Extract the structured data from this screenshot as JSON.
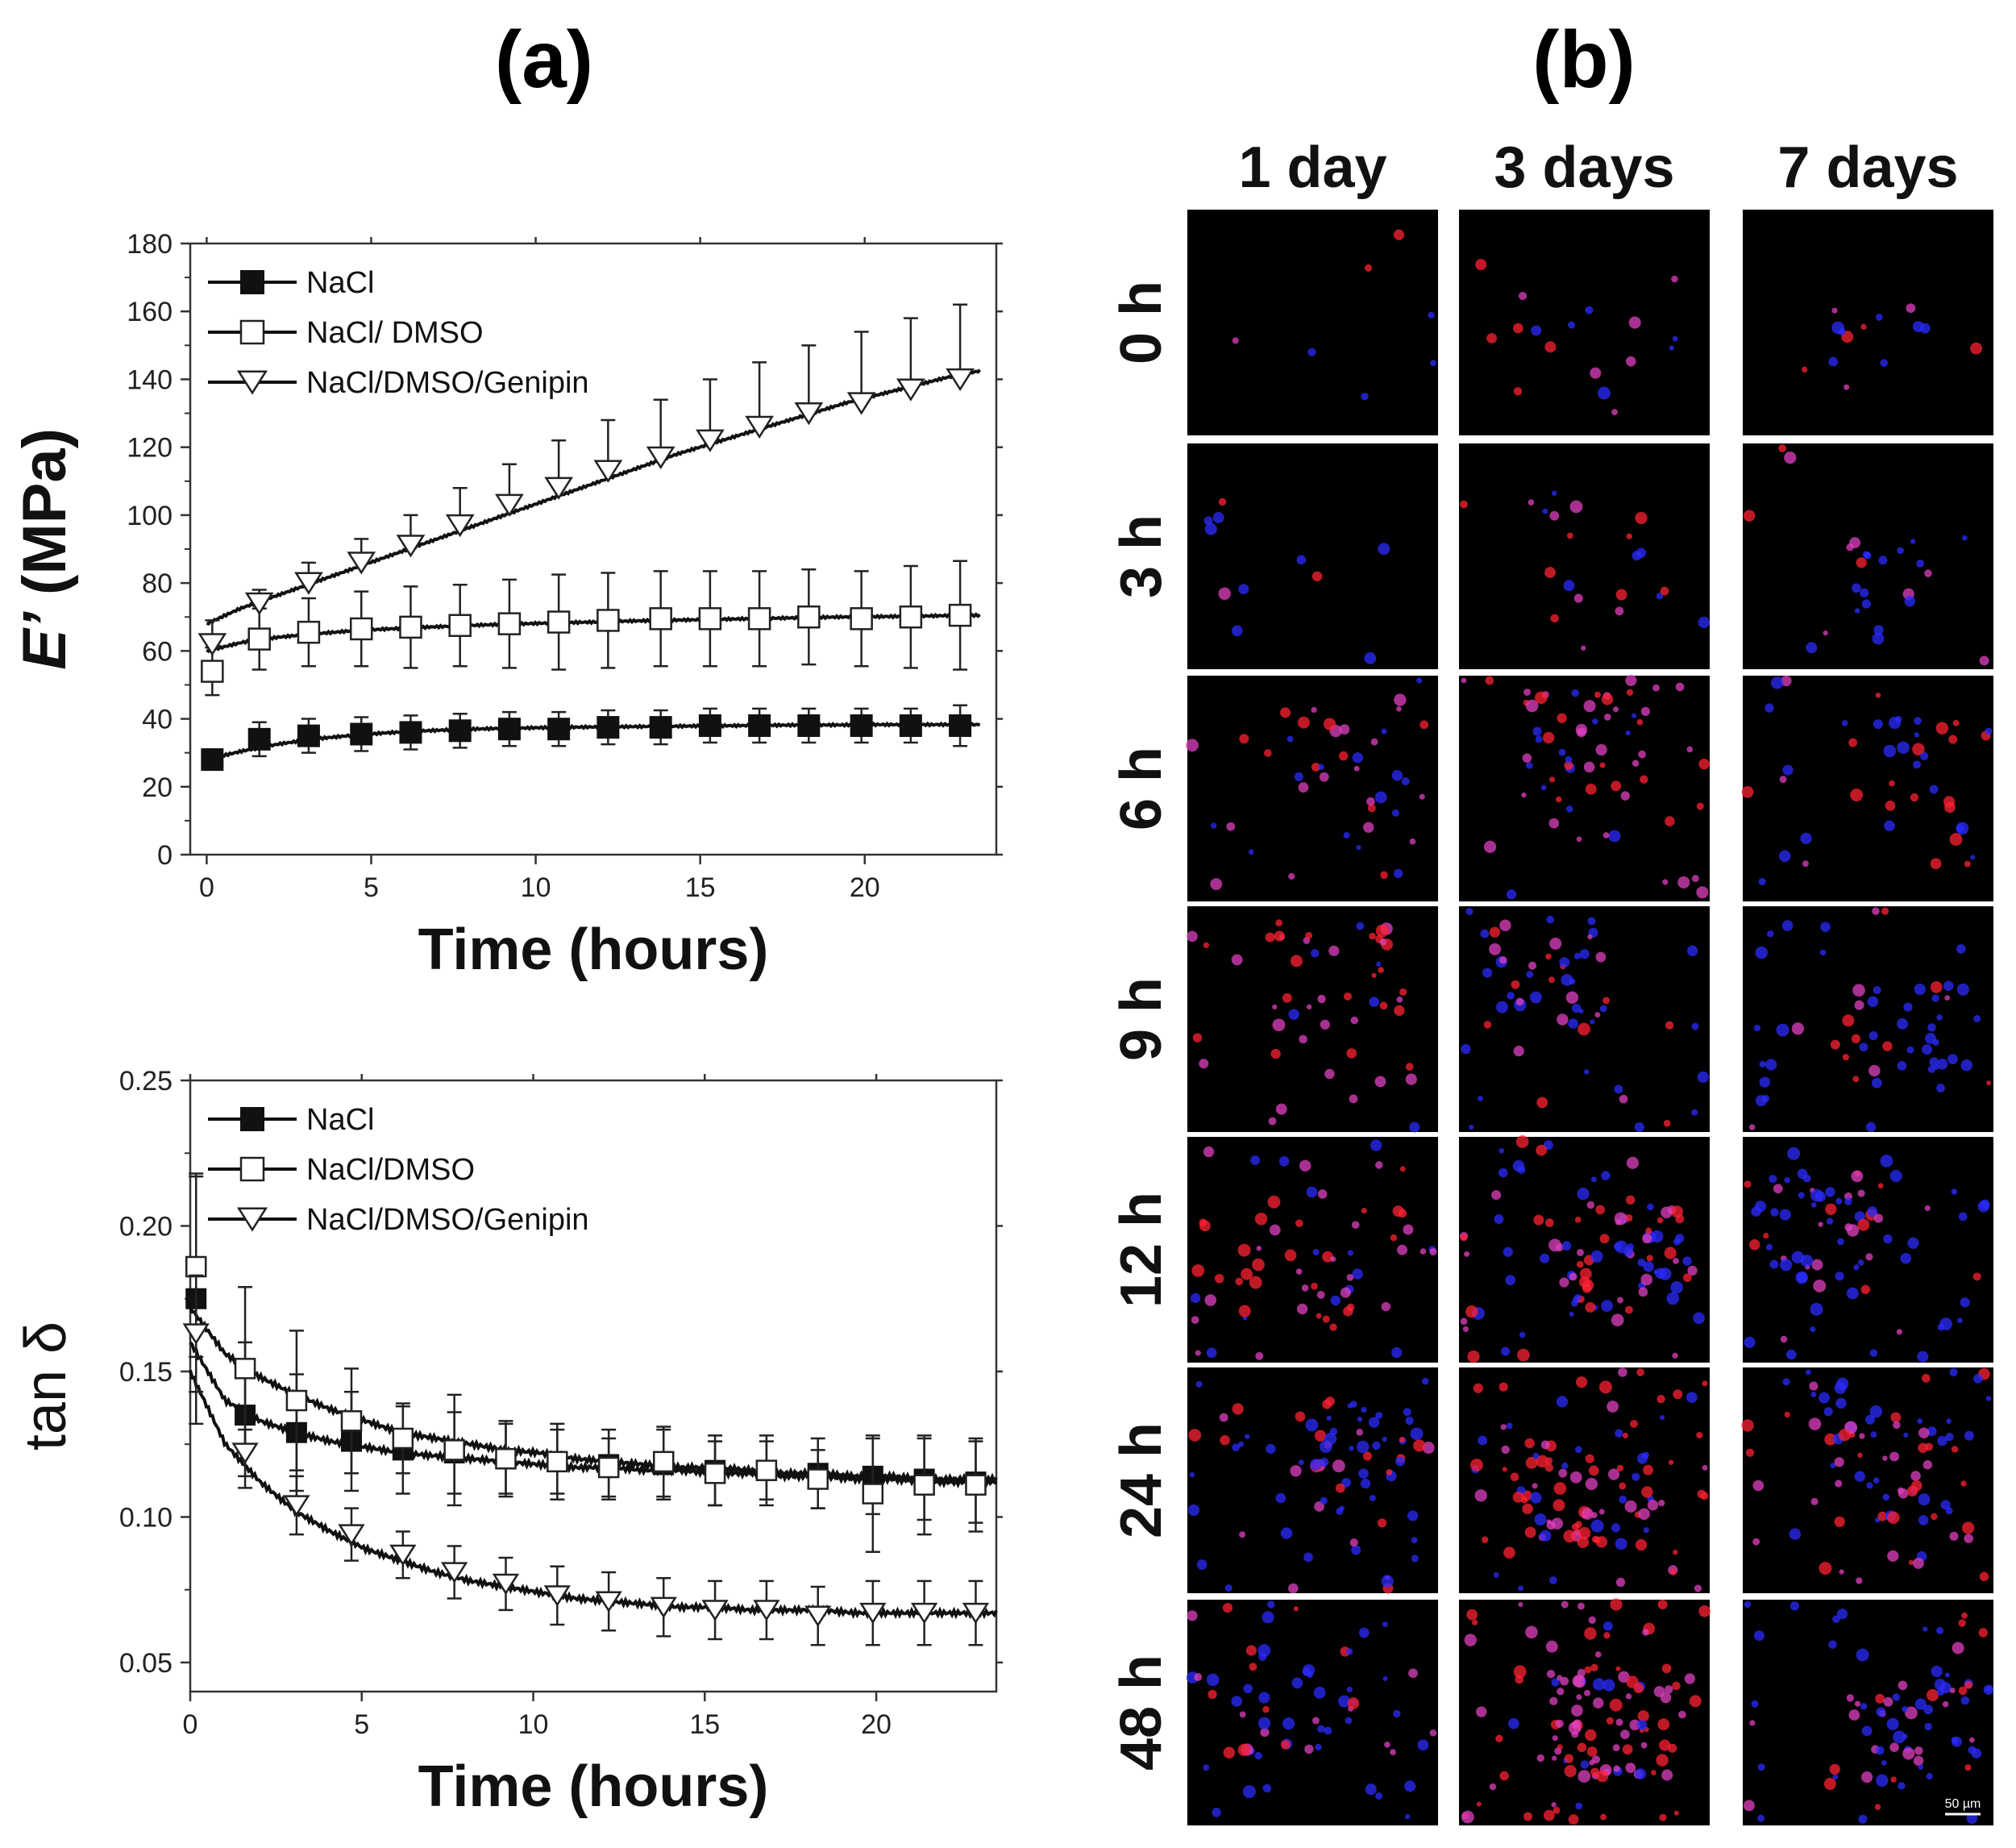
{
  "panel_labels": {
    "a": "(a)",
    "b": "(b)"
  },
  "chart_data": [
    {
      "type": "line",
      "panel": "(a) top",
      "title": "",
      "xlabel": "Time (hours)",
      "ylabel_prefix": "E’",
      "ylabel_suffix": " (MPa)",
      "xlim": [
        -0.5,
        24
      ],
      "ylim": [
        0,
        180
      ],
      "xticks": [
        0,
        5,
        10,
        15,
        20
      ],
      "yticks": [
        0,
        20,
        40,
        60,
        80,
        100,
        120,
        140,
        160,
        180
      ],
      "legend_position": "top-left",
      "grid": false,
      "x": [
        0.17,
        1.6,
        3.1,
        4.7,
        6.2,
        7.7,
        9.2,
        10.7,
        12.2,
        13.8,
        15.3,
        16.8,
        18.3,
        19.9,
        21.4,
        22.9
      ],
      "series": [
        {
          "name": "NaCl",
          "marker": "filled-square",
          "values": [
            28,
            34,
            35,
            35.5,
            36,
            36.5,
            37,
            37,
            37.5,
            37.5,
            38,
            38,
            38,
            38,
            38,
            38
          ],
          "errors": [
            3,
            5,
            5,
            5,
            5,
            5,
            5,
            5,
            5,
            5,
            5,
            5,
            5,
            5,
            5,
            6
          ],
          "fit": [
            28,
            30.5,
            32.5,
            34,
            35,
            35.8,
            36.4,
            36.8,
            37.1,
            37.3,
            37.5,
            37.6,
            37.7,
            37.8,
            37.9,
            38,
            38.1,
            38.2,
            38.2,
            38.3,
            38.3,
            38.3,
            38.3
          ]
        },
        {
          "name": "NaCl/ DMSO",
          "marker": "open-square",
          "values": [
            54,
            63.5,
            65.5,
            66.5,
            67,
            67.5,
            68,
            68.5,
            69,
            69.5,
            69.5,
            69.5,
            70,
            69.5,
            70,
            70.5
          ],
          "errors": [
            7,
            9,
            10,
            11,
            12,
            12,
            13,
            14,
            14,
            14,
            14,
            14,
            14,
            14,
            15,
            16
          ],
          "fit": [
            60,
            62.5,
            64,
            65,
            65.8,
            66.4,
            66.9,
            67.3,
            67.7,
            68,
            68.3,
            68.5,
            68.8,
            69,
            69.2,
            69.4,
            69.6,
            69.8,
            70,
            70.1,
            70.2,
            70.4,
            70.5
          ]
        },
        {
          "name": "NaCl/DMSO/Genipin",
          "marker": "open-triangle-down",
          "values": [
            62,
            74,
            80,
            86,
            91,
            97,
            103,
            108,
            113,
            117,
            122,
            126,
            130,
            133,
            137,
            140
          ],
          "errors": [
            7,
            4,
            6,
            7,
            9,
            11,
            12,
            14,
            15,
            17,
            18,
            19,
            20,
            21,
            21,
            22
          ],
          "fit": [
            68,
            72.5,
            76,
            79.5,
            83,
            86.5,
            90,
            93.5,
            97,
            100.5,
            104,
            107.5,
            111,
            114.5,
            118,
            121,
            124,
            127,
            130,
            133,
            135.5,
            138,
            140.5,
            142.5
          ]
        }
      ]
    },
    {
      "type": "line",
      "panel": "(a) bottom",
      "title": "",
      "xlabel": "Time (hours)",
      "ylabel": "tan δ",
      "xlim": [
        0,
        23.5
      ],
      "ylim": [
        0.04,
        0.25
      ],
      "xticks": [
        0,
        5,
        10,
        15,
        20
      ],
      "yticks": [
        0.05,
        0.1,
        0.15,
        0.2,
        0.25
      ],
      "ytick_labels": [
        "0.05",
        "0.10",
        "0.15",
        "0.20",
        "0.25"
      ],
      "legend_position": "top-left",
      "grid": false,
      "x": [
        0.17,
        1.6,
        3.1,
        4.7,
        6.2,
        7.7,
        9.2,
        10.7,
        12.2,
        13.8,
        15.3,
        16.8,
        18.3,
        19.9,
        21.4,
        22.9
      ],
      "series": [
        {
          "name": "NaCl",
          "marker": "filled-square",
          "values": [
            0.175,
            0.135,
            0.129,
            0.126,
            0.123,
            0.122,
            0.12,
            0.119,
            0.118,
            0.118,
            0.116,
            0.116,
            0.115,
            0.114,
            0.113,
            0.112
          ],
          "errors": [
            0.043,
            0.025,
            0.02,
            0.017,
            0.015,
            0.014,
            0.013,
            0.013,
            0.012,
            0.012,
            0.012,
            0.012,
            0.012,
            0.013,
            0.014,
            0.014
          ],
          "fit": [
            0.16,
            0.14,
            0.133,
            0.129,
            0.126,
            0.124,
            0.122,
            0.121,
            0.12,
            0.119,
            0.118,
            0.117,
            0.117,
            0.116,
            0.116,
            0.115,
            0.115,
            0.114,
            0.114,
            0.113,
            0.113,
            0.112,
            0.112,
            0.112
          ]
        },
        {
          "name": "NaCl/DMSO",
          "marker": "open-square",
          "values": [
            0.186,
            0.151,
            0.14,
            0.133,
            0.127,
            0.123,
            0.12,
            0.119,
            0.117,
            0.119,
            0.115,
            0.116,
            0.113,
            0.108,
            0.111,
            0.111
          ],
          "errors": [
            0.031,
            0.028,
            0.024,
            0.018,
            0.012,
            0.019,
            0.012,
            0.011,
            0.01,
            0.012,
            0.011,
            0.01,
            0.01,
            0.02,
            0.017,
            0.016
          ],
          "fit": [
            0.172,
            0.156,
            0.148,
            0.142,
            0.137,
            0.133,
            0.129,
            0.127,
            0.125,
            0.123,
            0.122,
            0.12,
            0.119,
            0.118,
            0.117,
            0.117,
            0.116,
            0.115,
            0.115,
            0.114,
            0.114,
            0.113,
            0.113,
            0.113
          ]
        },
        {
          "name": "NaCl/DMSO/Genipin",
          "marker": "open-triangle-down",
          "values": [
            0.163,
            0.122,
            0.104,
            0.094,
            0.087,
            0.081,
            0.077,
            0.073,
            0.071,
            0.069,
            0.068,
            0.068,
            0.066,
            0.067,
            0.067,
            0.067
          ],
          "errors": [
            0.02,
            0.008,
            0.01,
            0.009,
            0.008,
            0.009,
            0.009,
            0.01,
            0.01,
            0.01,
            0.01,
            0.01,
            0.01,
            0.011,
            0.011,
            0.011
          ],
          "fit": [
            0.15,
            0.125,
            0.112,
            0.102,
            0.095,
            0.089,
            0.085,
            0.081,
            0.078,
            0.076,
            0.074,
            0.072,
            0.071,
            0.07,
            0.069,
            0.069,
            0.068,
            0.068,
            0.068,
            0.067,
            0.067,
            0.067,
            0.067,
            0.067
          ]
        }
      ]
    }
  ],
  "microscopy": {
    "column_labels": [
      "1 day",
      "3 days",
      "7 days"
    ],
    "row_labels": [
      "0 h",
      "3 h",
      "6 h",
      "9 h",
      "12 h",
      "24 h",
      "48 h"
    ],
    "scale_bar_label": "50 µm",
    "colors": {
      "background": "#000000",
      "nuclei": "#2b2bff",
      "cytoskeleton": "#ff2233",
      "overlap": "#e040c0"
    },
    "cell_density": [
      [
        0.05,
        0.12,
        0.1
      ],
      [
        0.08,
        0.15,
        0.18
      ],
      [
        0.3,
        0.45,
        0.3
      ],
      [
        0.35,
        0.4,
        0.4
      ],
      [
        0.45,
        0.7,
        0.55
      ],
      [
        0.55,
        0.75,
        0.6
      ],
      [
        0.45,
        0.85,
        0.55
      ]
    ],
    "red_ratio": [
      [
        0.5,
        0.6,
        0.5
      ],
      [
        0.4,
        0.6,
        0.5
      ],
      [
        0.7,
        0.7,
        0.5
      ],
      [
        0.8,
        0.5,
        0.2
      ],
      [
        0.8,
        0.6,
        0.4
      ],
      [
        0.4,
        0.7,
        0.6
      ],
      [
        0.3,
        0.85,
        0.4
      ]
    ]
  }
}
